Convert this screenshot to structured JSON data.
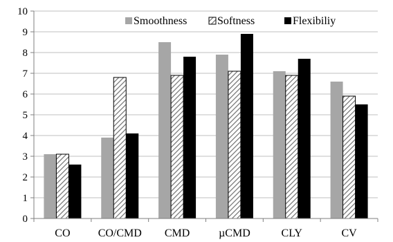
{
  "chart_data": {
    "type": "bar",
    "categories": [
      "CO",
      "CO/CMD",
      "CMD",
      "µCMD",
      "CLY",
      "CV"
    ],
    "series": [
      {
        "name": "Smoothness",
        "values": [
          3.1,
          3.9,
          8.5,
          7.9,
          7.1,
          6.6
        ],
        "color": "#a6a6a6",
        "pattern": "solid"
      },
      {
        "name": "Softness",
        "values": [
          3.1,
          6.8,
          6.9,
          7.1,
          6.9,
          5.9
        ],
        "color": "#ffffff",
        "pattern": "diagonal-hatch"
      },
      {
        "name": "Flexibiliy",
        "values": [
          2.6,
          4.1,
          7.8,
          8.9,
          7.7,
          5.5
        ],
        "color": "#000000",
        "pattern": "solid"
      }
    ],
    "ylim": [
      0,
      10
    ],
    "yticks": [
      "0",
      "1",
      "2",
      "3",
      "4",
      "5",
      "6",
      "7",
      "8",
      "9",
      "10"
    ],
    "grid": "horizontal",
    "legend_position": "top-right"
  }
}
